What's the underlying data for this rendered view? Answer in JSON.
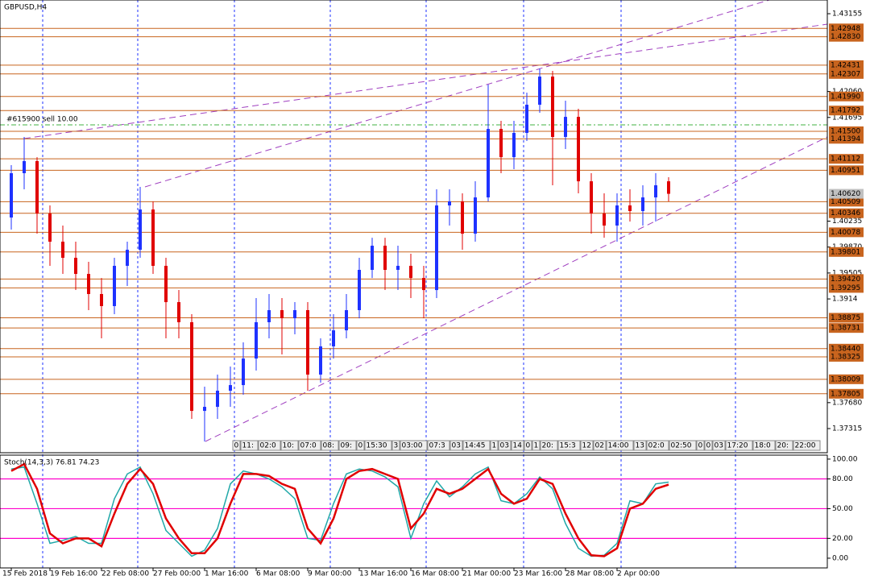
{
  "chart_data": [
    {
      "type": "candlestick",
      "title": "GBPUSD,H4",
      "categories": [
        "15 Feb 2018",
        null,
        null,
        "19 Feb 16:00",
        null,
        null,
        null,
        "22 Feb 08:00",
        null,
        null,
        null,
        "27 Feb 00:00",
        null,
        null,
        null,
        "1 Mar 16:00",
        null,
        null,
        null,
        "6 Mar 08:00",
        null,
        null,
        null,
        "9 Mar 00:00",
        null,
        null,
        null,
        "13 Mar 16:00",
        null,
        null,
        null,
        "16 Mar 08:00",
        null,
        null,
        null,
        "21 Mar 00:00",
        null,
        null,
        null,
        "23 Mar 16:00",
        null,
        null,
        null,
        "28 Mar 08:00",
        null,
        null,
        null,
        "2 Apr 00:00",
        null,
        null,
        null,
        null
      ],
      "open": [
        1.40286,
        1.4091,
        1.4108,
        1.40343,
        1.39946,
        1.39719,
        1.39492,
        1.39209,
        1.39039,
        1.39606,
        1.39832,
        1.40399,
        1.39606,
        1.39095,
        1.38812,
        1.37564,
        1.37621,
        1.37848,
        1.37927,
        1.38301,
        1.38812,
        1.38982,
        1.38868,
        1.38982,
        1.38075,
        1.38472,
        1.38698,
        1.38982,
        1.39549,
        1.39889,
        1.39549,
        1.39606,
        1.39435,
        1.39265,
        1.40456,
        1.40513,
        1.40059,
        1.40569,
        1.41533,
        1.41136,
        1.41477,
        1.41874,
        1.4227,
        1.4142,
        1.41703,
        1.40796,
        1.40343,
        1.40173,
        1.40456,
        1.40377,
        1.40569,
        1.40796
      ],
      "high": [
        1.41023,
        1.4142,
        1.41136,
        1.40456,
        1.40173,
        1.39946,
        1.39662,
        1.39435,
        1.39719,
        1.39946,
        1.40717,
        1.40513,
        1.39719,
        1.39265,
        1.38925,
        1.37905,
        1.38075,
        1.38188,
        1.38528,
        1.39152,
        1.39209,
        1.39152,
        1.39095,
        1.39095,
        1.38585,
        1.38925,
        1.39209,
        1.39719,
        1.40002,
        1.40002,
        1.39889,
        1.39776,
        1.39606,
        1.40683,
        1.40683,
        1.40626,
        1.40796,
        1.42157,
        1.41647,
        1.41647,
        1.42044,
        1.42384,
        1.4235,
        1.4193,
        1.41817,
        1.4091,
        1.40626,
        1.40626,
        1.40683,
        1.4074,
        1.4091,
        1.40853
      ],
      "low": [
        1.40116,
        1.40683,
        1.40059,
        1.39606,
        1.39492,
        1.39265,
        1.38982,
        1.38585,
        1.38925,
        1.39322,
        1.39719,
        1.39492,
        1.38585,
        1.38585,
        1.37451,
        1.37133,
        1.37451,
        1.37621,
        1.37791,
        1.38131,
        1.38585,
        1.38358,
        1.38642,
        1.37848,
        1.37961,
        1.38301,
        1.38585,
        1.38868,
        1.39435,
        1.39265,
        1.39265,
        1.39152,
        1.38868,
        1.39152,
        1.40173,
        1.39832,
        1.39946,
        1.40513,
        1.4091,
        1.40966,
        1.41363,
        1.4176,
        1.4074,
        1.4125,
        1.40626,
        1.40059,
        1.40002,
        1.39946,
        1.40229,
        1.40173,
        1.40229,
        1.40513
      ],
      "close": [
        1.4091,
        1.4108,
        1.40343,
        1.39946,
        1.39719,
        1.39492,
        1.39209,
        1.39039,
        1.39606,
        1.39832,
        1.40399,
        1.39606,
        1.39095,
        1.38812,
        1.37564,
        1.37621,
        1.37848,
        1.37927,
        1.38301,
        1.38812,
        1.38982,
        1.38868,
        1.38982,
        1.38075,
        1.38472,
        1.38698,
        1.38982,
        1.39549,
        1.39889,
        1.39549,
        1.39606,
        1.39435,
        1.39265,
        1.40456,
        1.40513,
        1.40059,
        1.40569,
        1.41533,
        1.41136,
        1.41477,
        1.41874,
        1.4227,
        1.4142,
        1.41703,
        1.40796,
        1.40343,
        1.40173,
        1.40456,
        1.40377,
        1.40569,
        1.4074,
        1.4062
      ],
      "up_color": "#1e32ff",
      "down_color": "#e00000",
      "ylim": [
        1.36975,
        1.43348
      ],
      "yticks": [
        1.43155,
        {
          "value": 1.4206,
          "label": "1.42060"
        },
        1.41695,
        1.40235,
        {
          "value": 1.3987,
          "label": "1.39870"
        },
        1.39505,
        1.3914,
        {
          "value": 1.3768,
          "label": "1.37680"
        },
        1.37315
      ],
      "levels": [
        1.42948,
        {
          "value": 1.4283,
          "label": "1.42830"
        },
        1.42431,
        1.42307,
        {
          "value": 1.4199,
          "label": "1.41990"
        },
        1.41792,
        {
          "value": 1.415,
          "label": "1.41500"
        },
        1.41394,
        1.41112,
        1.40951,
        1.40509,
        1.40346,
        1.40078,
        1.39801,
        {
          "value": 1.3942,
          "label": "1.39420"
        },
        1.39295,
        1.38875,
        1.38731,
        {
          "value": 1.3844,
          "label": "1.38440"
        },
        1.38325,
        1.38009,
        1.37805
      ],
      "level_color": "#c8641e",
      "current_price": {
        "value": 1.4062,
        "label": "1.40620"
      },
      "order_label": "#615900 sell 10.00",
      "order_price": 1.4159,
      "time_markers": [
        "0",
        "11:",
        "02:0",
        "10:",
        "07:0",
        "08:",
        "09:",
        "0",
        "15:30",
        "3",
        "03:00",
        "07:3",
        "03",
        "14:45",
        "1",
        "03",
        "14",
        "0",
        "1",
        "20:",
        "15:3",
        "12",
        "02",
        "14:00",
        "13",
        "02:0",
        "02:50",
        "0",
        "0",
        "03",
        "17:20",
        "18:0",
        "20:",
        "22:00"
      ]
    },
    {
      "type": "line",
      "title": "Stoch(14,3,3) 76.81 74.23",
      "series": [
        {
          "color": "#20a8a8",
          "values": [
            90,
            92,
            55,
            15,
            18,
            22,
            15,
            15,
            60,
            85,
            92,
            65,
            28,
            15,
            2,
            8,
            30,
            75,
            88,
            85,
            80,
            72,
            60,
            20,
            18,
            55,
            85,
            90,
            88,
            82,
            72,
            20,
            55,
            78,
            62,
            72,
            85,
            92,
            58,
            55,
            65,
            82,
            70,
            35,
            10,
            2,
            3,
            15,
            58,
            55,
            75,
            76.81
          ]
        },
        {
          "color": "#e00000",
          "values": [
            88,
            95,
            70,
            25,
            15,
            20,
            20,
            12,
            45,
            75,
            90,
            75,
            40,
            20,
            5,
            5,
            20,
            55,
            85,
            85,
            83,
            75,
            70,
            30,
            15,
            40,
            80,
            88,
            90,
            85,
            80,
            30,
            45,
            70,
            65,
            70,
            80,
            90,
            65,
            55,
            60,
            80,
            75,
            45,
            20,
            3,
            2,
            10,
            50,
            55,
            70,
            74.23
          ]
        }
      ],
      "ylim": [
        -9.8,
        104
      ],
      "yticks": [
        {
          "value": 100,
          "label": "100.00"
        },
        {
          "value": 80,
          "label": "80.00"
        },
        {
          "value": 50,
          "label": "50.00"
        },
        {
          "value": 20,
          "label": "20.00"
        },
        {
          "value": 0,
          "label": "0.00"
        }
      ],
      "levels": [
        80,
        50,
        20
      ],
      "level_color": "#ff00cc"
    }
  ]
}
